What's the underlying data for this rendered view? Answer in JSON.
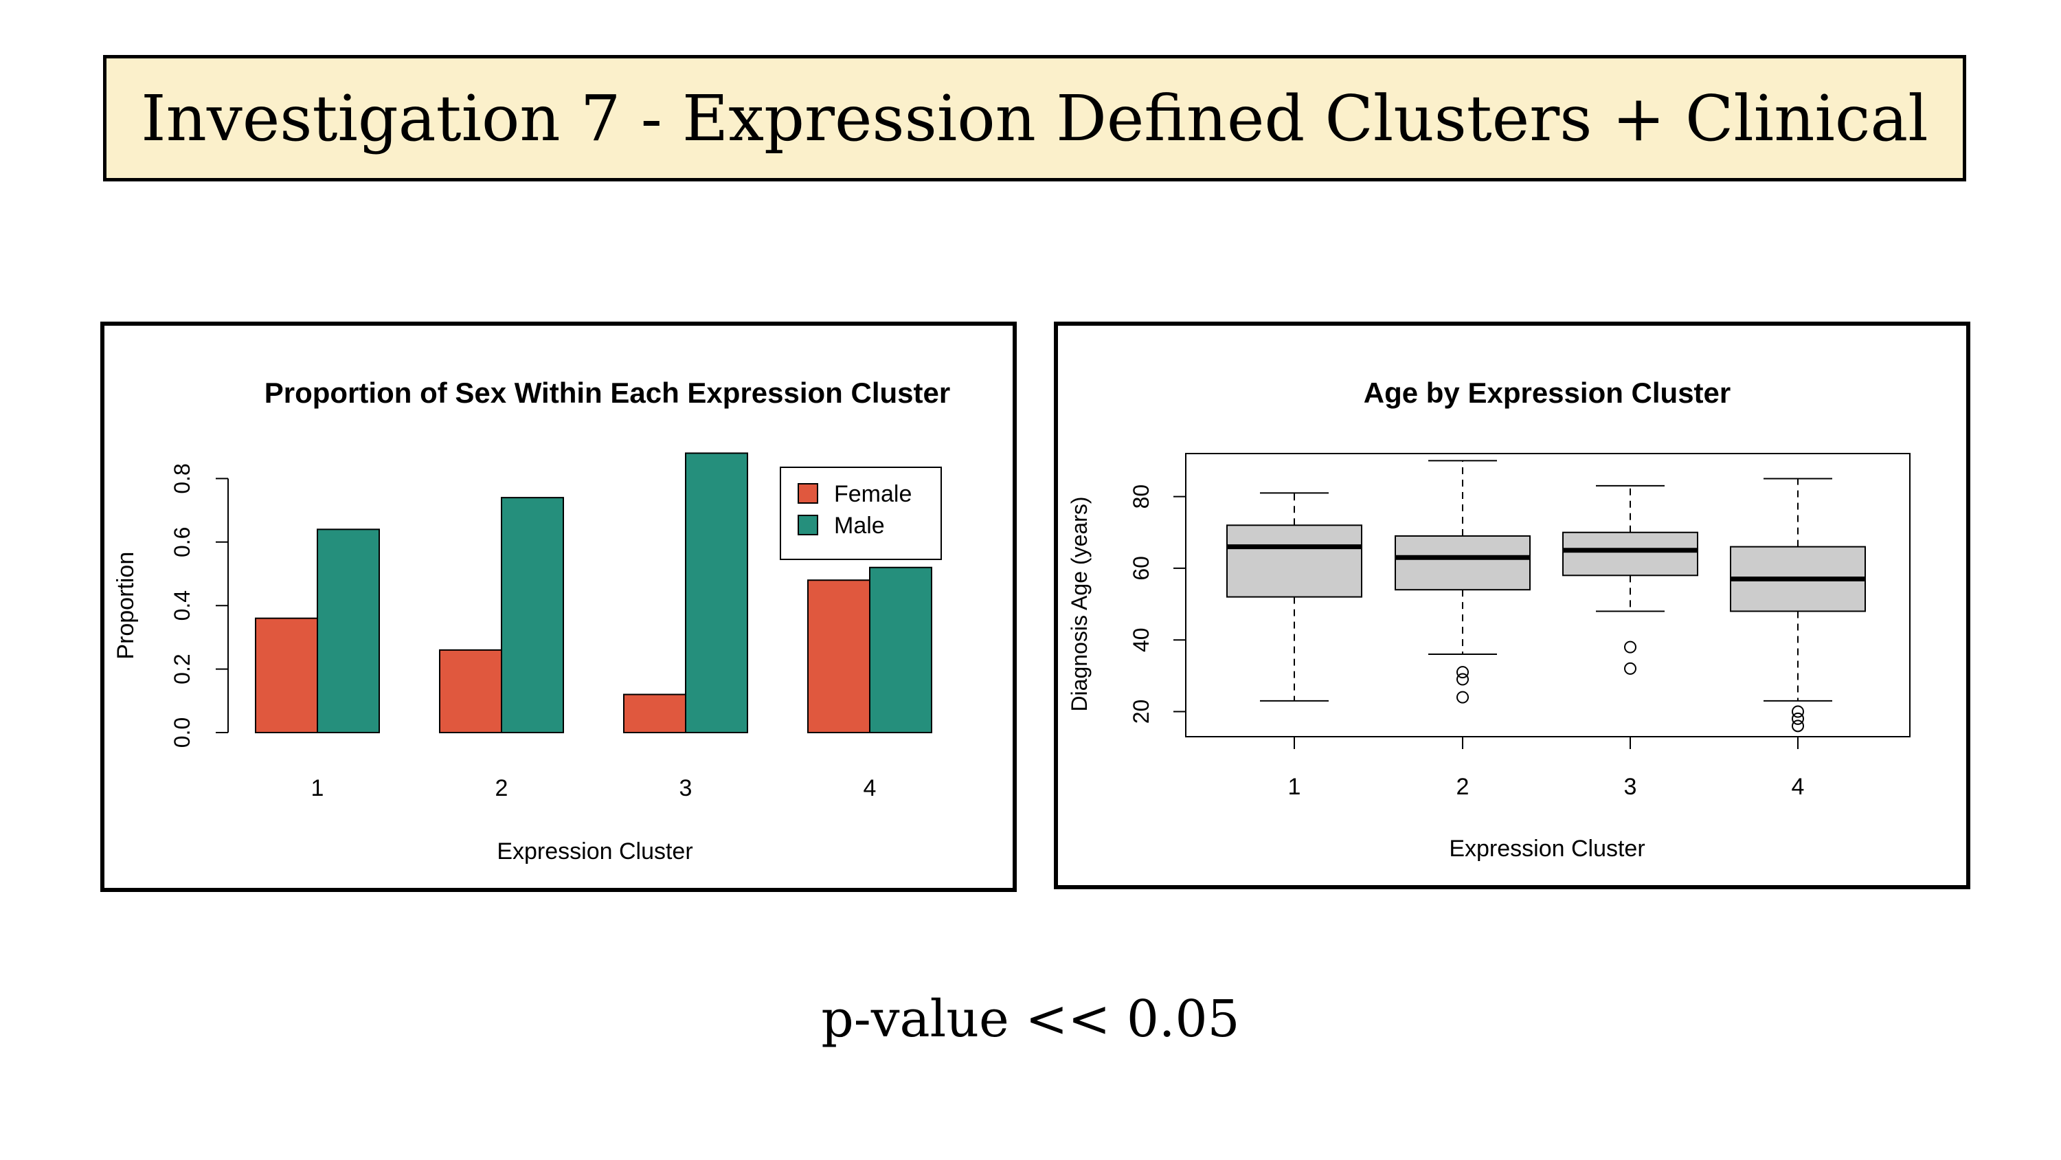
{
  "page": {
    "title": "Investigation 7 - Expression Defined Clusters + Clinical",
    "footer": "p-value << 0.05"
  },
  "colors": {
    "title_bg": "#fbf0cb",
    "female": "#e0583e",
    "male": "#258f7c",
    "box_fill": "#cccccc"
  },
  "chart_data": [
    {
      "type": "bar",
      "title": "Proportion of Sex Within Each Expression Cluster",
      "xlabel": "Expression Cluster",
      "ylabel": "Proportion",
      "categories": [
        "1",
        "2",
        "3",
        "4"
      ],
      "series": [
        {
          "name": "Female",
          "values": [
            0.36,
            0.26,
            0.12,
            0.48
          ]
        },
        {
          "name": "Male",
          "values": [
            0.64,
            0.74,
            0.88,
            0.52
          ]
        }
      ],
      "yticks": [
        "0.0",
        "0.2",
        "0.4",
        "0.6",
        "0.8"
      ],
      "ylim": [
        0,
        0.88
      ],
      "legend": {
        "position": "top-right",
        "entries": [
          "Female",
          "Male"
        ]
      }
    },
    {
      "type": "box",
      "title": "Age by Expression Cluster",
      "xlabel": "Expression Cluster",
      "ylabel": "Diagnosis Age (years)",
      "categories": [
        "1",
        "2",
        "3",
        "4"
      ],
      "yticks": [
        "20",
        "40",
        "60",
        "80"
      ],
      "ylim": [
        13,
        92
      ],
      "boxes": [
        {
          "min": 23,
          "q1": 52,
          "median": 66,
          "q3": 72,
          "max": 81,
          "outliers": []
        },
        {
          "min": 36,
          "q1": 54,
          "median": 63,
          "q3": 69,
          "max": 90,
          "outliers": [
            31,
            29,
            24
          ]
        },
        {
          "min": 48,
          "q1": 58,
          "median": 65,
          "q3": 70,
          "max": 83,
          "outliers": [
            38,
            32
          ]
        },
        {
          "min": 23,
          "q1": 48,
          "median": 57,
          "q3": 66,
          "max": 85,
          "outliers": [
            20,
            18,
            16
          ]
        }
      ]
    }
  ]
}
